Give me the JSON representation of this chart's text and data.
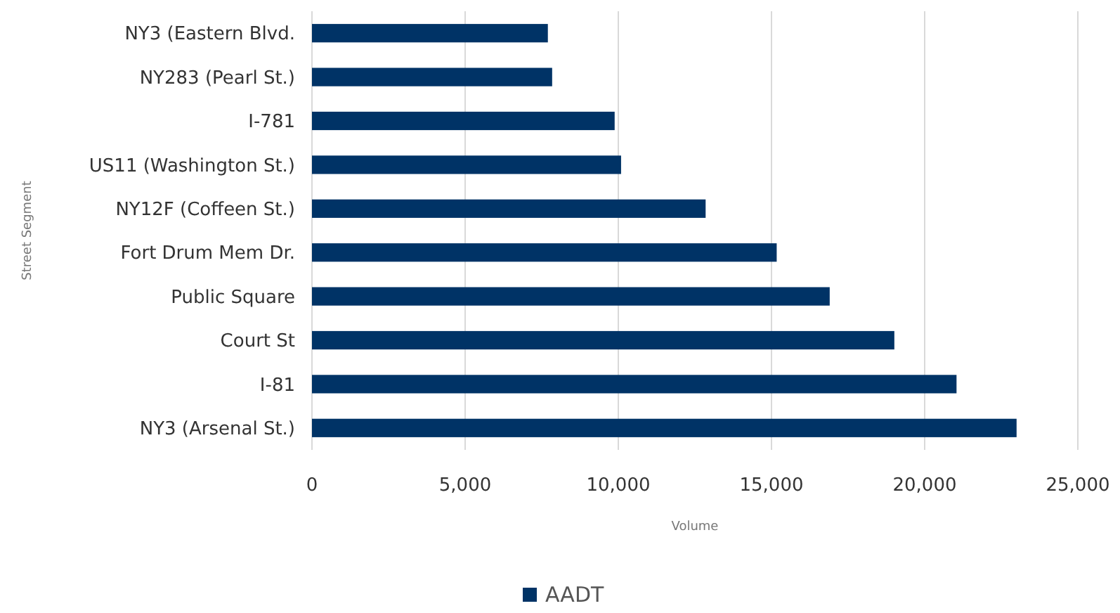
{
  "chart_data": {
    "type": "bar",
    "orientation": "horizontal",
    "ylabel": "Street Segment",
    "xlabel": "Volume",
    "categories": [
      "NY3 (Eastern Blvd.",
      "NY283 (Pearl St.)",
      "I-781",
      "US11 (Washington St.)",
      "NY12F (Coffeen St.)",
      "Fort Drum Mem Dr.",
      "Public Square",
      "Court St",
      "I-81",
      "NY3 (Arsenal St.)"
    ],
    "series": [
      {
        "name": "AADT",
        "color": "#003366",
        "values": [
          7700,
          7840,
          9880,
          10090,
          12850,
          15170,
          16900,
          19010,
          21040,
          23000
        ]
      }
    ],
    "xlim": [
      0,
      25000
    ],
    "xticks": [
      {
        "value": 0,
        "label": "0"
      },
      {
        "value": 5000,
        "label": "5,000"
      },
      {
        "value": 10000,
        "label": "10,000"
      },
      {
        "value": 15000,
        "label": "15,000"
      },
      {
        "value": 20000,
        "label": "20,000"
      },
      {
        "value": 25000,
        "label": "25,000"
      }
    ],
    "grid": "x",
    "legend": "bottom"
  }
}
